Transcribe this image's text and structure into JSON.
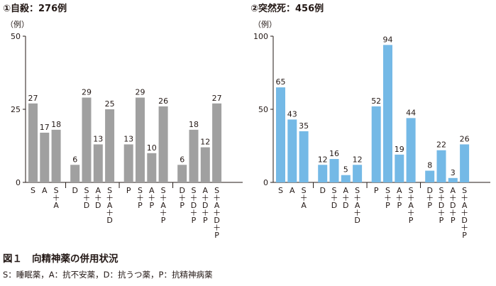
{
  "figure": {
    "label": "図１",
    "title": "向精神薬の併用状況",
    "note": "S：睡眠薬，A：抗不安薬，D：抗うつ薬，P：抗精神病薬"
  },
  "chart_data": [
    {
      "type": "bar",
      "title": "①自殺：276例",
      "ylabel": "（例）",
      "ylim": [
        0,
        50
      ],
      "yticks": [
        0,
        25,
        50
      ],
      "color": "#a0a0a0",
      "groups": [
        {
          "categories": [
            "S",
            "A",
            "S+A"
          ],
          "values": [
            27,
            17,
            18
          ]
        },
        {
          "categories": [
            "D",
            "S+D",
            "A+D",
            "S+A+D"
          ],
          "values": [
            6,
            29,
            13,
            25
          ]
        },
        {
          "categories": [
            "P",
            "S+P",
            "A+P",
            "S+A+P"
          ],
          "values": [
            13,
            29,
            10,
            26
          ]
        },
        {
          "categories": [
            "D+P",
            "S+D+P",
            "A+D+P",
            "S+A+D+P"
          ],
          "values": [
            6,
            18,
            12,
            27
          ]
        }
      ]
    },
    {
      "type": "bar",
      "title": "②突然死：456例",
      "ylabel": "（例）",
      "ylim": [
        0,
        100
      ],
      "yticks": [
        0,
        50,
        100
      ],
      "color": "#74b9e6",
      "groups": [
        {
          "categories": [
            "S",
            "A",
            "S+A"
          ],
          "values": [
            65,
            43,
            35
          ]
        },
        {
          "categories": [
            "D",
            "S+D",
            "A+D",
            "S+A+D"
          ],
          "values": [
            12,
            16,
            5,
            12
          ]
        },
        {
          "categories": [
            "P",
            "S+P",
            "A+P",
            "S+A+P"
          ],
          "values": [
            52,
            94,
            19,
            44
          ]
        },
        {
          "categories": [
            "D+P",
            "S+D+P",
            "A+D+P",
            "S+A+D+P"
          ],
          "values": [
            8,
            22,
            3,
            26
          ]
        }
      ]
    }
  ]
}
